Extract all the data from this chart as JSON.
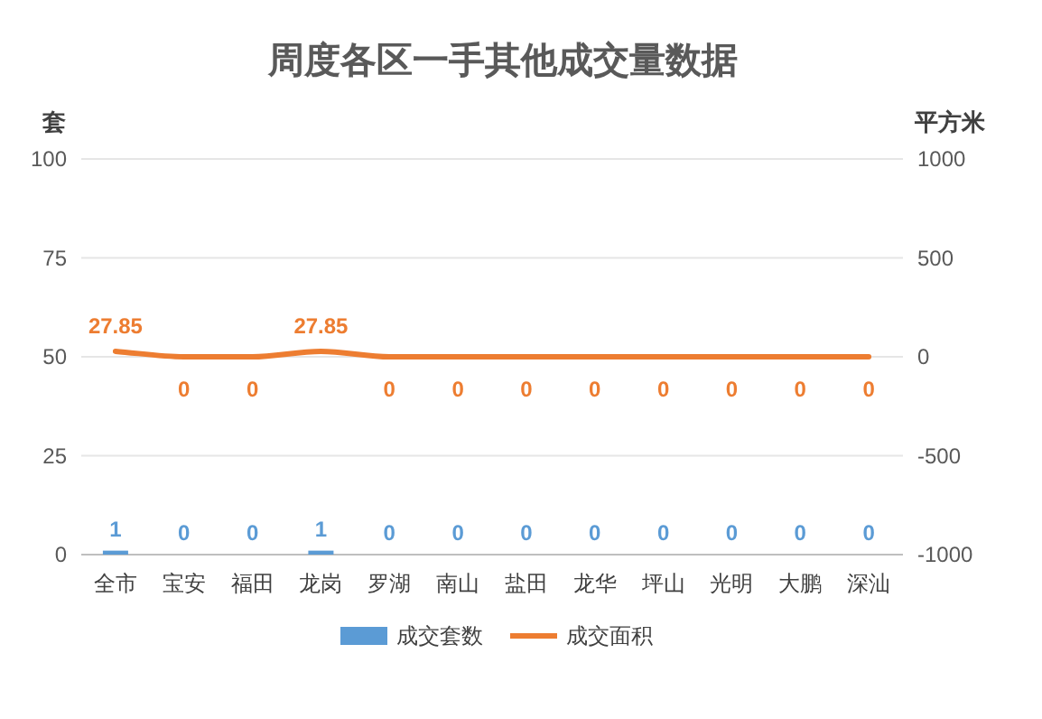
{
  "chart_data": {
    "type": "bar",
    "title": "周度各区一手其他成交量数据",
    "ylabel": "套",
    "y2label": "平方米",
    "categories": [
      "全市",
      "宝安",
      "福田",
      "龙岗",
      "罗湖",
      "南山",
      "盐田",
      "龙华",
      "坪山",
      "光明",
      "大鹏",
      "深汕"
    ],
    "series": [
      {
        "name": "成交套数",
        "color": "#5b9bd5",
        "values": [
          1,
          0,
          0,
          1,
          0,
          0,
          0,
          0,
          0,
          0,
          0,
          0
        ]
      },
      {
        "name": "成交面积",
        "type": "line",
        "axis": "y2",
        "color": "#ed7d31",
        "values": [
          27.85,
          0,
          0,
          27.85,
          0,
          0,
          0,
          0,
          0,
          0,
          0,
          0
        ]
      }
    ],
    "ylim": [
      0,
      100
    ],
    "yticks": [
      0,
      25,
      50,
      75,
      100
    ],
    "y2lim": [
      -1000,
      1000
    ],
    "y2ticks": [
      -1000,
      -500,
      0,
      500,
      1000
    ],
    "grid": "y",
    "legend": "bottom",
    "data_labels": true
  }
}
